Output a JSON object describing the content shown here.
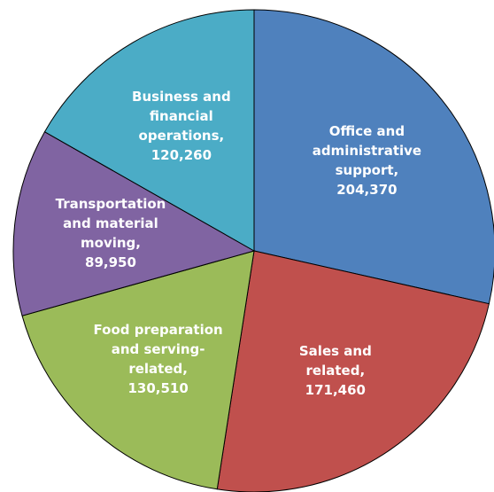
{
  "chart_data": {
    "type": "pie",
    "categories": [
      "Office and administrative support,",
      "Sales and related,",
      "Food preparation and serving-related,",
      "Transportation and material moving,",
      "Business and financial operations,"
    ],
    "values": [
      204370,
      171460,
      130510,
      89950,
      120260
    ],
    "value_labels": [
      "204,370",
      "171,460",
      "130,510",
      "89,950",
      "120,260"
    ],
    "colors": [
      "#4f81bd",
      "#c0504d",
      "#9bbb59",
      "#8064a2",
      "#4bacc6"
    ]
  }
}
